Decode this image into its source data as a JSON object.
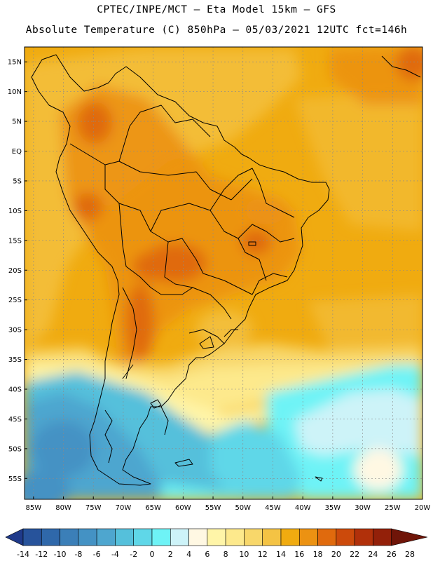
{
  "header": {
    "line1": "CPTEC/INPE/MCT –  Eta Model 15km – GFS",
    "line2": "Absolute Temperature (C) 850hPa – 05/03/2021 12UTC fct=146h"
  },
  "map": {
    "lat_labels": [
      "15N",
      "10N",
      "5N",
      "EQ",
      "5S",
      "10S",
      "15S",
      "20S",
      "25S",
      "30S",
      "35S",
      "40S",
      "45S",
      "50S",
      "55S"
    ],
    "lat_values": [
      15,
      10,
      5,
      0,
      -5,
      -10,
      -15,
      -20,
      -25,
      -30,
      -35,
      -40,
      -45,
      -50,
      -55
    ],
    "lon_labels": [
      "85W",
      "80W",
      "75W",
      "70W",
      "65W",
      "60W",
      "55W",
      "50W",
      "45W",
      "40W",
      "35W",
      "30W",
      "25W",
      "20W"
    ],
    "lon_values": [
      -85,
      -80,
      -75,
      -70,
      -65,
      -60,
      -55,
      -50,
      -45,
      -40,
      -35,
      -30,
      -25,
      -20
    ],
    "lat_range": [
      -58.5,
      17.5
    ],
    "lon_range": [
      -86.5,
      -20
    ]
  },
  "colorbar": {
    "labels": [
      "-14",
      "-12",
      "-10",
      "-8",
      "-6",
      "-4",
      "-2",
      "0",
      "2",
      "4",
      "6",
      "8",
      "10",
      "12",
      "14",
      "16",
      "18",
      "20",
      "22",
      "24",
      "26",
      "28"
    ],
    "colors": [
      "#1f3a8a",
      "#27539b",
      "#2f68aa",
      "#3b7fb8",
      "#4492c4",
      "#4ea6cf",
      "#55c0db",
      "#5fd7e8",
      "#6ef3f6",
      "#cdf3f8",
      "#fff8e3",
      "#fff5a8",
      "#fde98c",
      "#f8d76a",
      "#f4c344",
      "#f0ab10",
      "#ec9212",
      "#e06a0d",
      "#cc4a0b",
      "#b1300a",
      "#932009",
      "#6f1508"
    ]
  }
}
